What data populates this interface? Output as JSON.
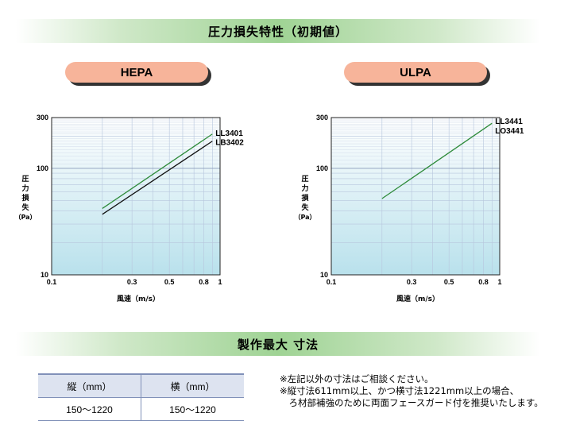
{
  "header_pressure": "圧力損失特性（初期値）",
  "header_size": "製作最大 寸法",
  "charts": [
    {
      "key": "hepa",
      "label": "HEPA",
      "ylabel": [
        "圧",
        "力",
        "損",
        "失",
        "（Pa）"
      ],
      "xlabel": "風速（m/s）"
    },
    {
      "key": "ulpa",
      "label": "ULPA",
      "ylabel": [
        "圧",
        "力",
        "損",
        "失",
        "（Pa）"
      ],
      "xlabel": "風速（m/s）"
    }
  ],
  "chart_data": [
    {
      "type": "line",
      "title": "HEPA",
      "xlabel": "風速（m/s）",
      "ylabel": "圧力損失（Pa）",
      "xscale": "log",
      "yscale": "log",
      "xlim": [
        0.1,
        1
      ],
      "ylim": [
        10,
        300
      ],
      "xticks": [
        "0.1",
        "0.3",
        "0.5",
        "0.8",
        "1"
      ],
      "yticks": [
        "10",
        "100",
        "300"
      ],
      "grid": true,
      "series": [
        {
          "name": "LL3401",
          "color": "#2e8b3a",
          "x": [
            0.2,
            0.9
          ],
          "y": [
            42,
            210
          ]
        },
        {
          "name": "LB3402",
          "color": "#111111",
          "x": [
            0.2,
            0.9
          ],
          "y": [
            37,
            180
          ]
        }
      ]
    },
    {
      "type": "line",
      "title": "ULPA",
      "xlabel": "風速（m/s）",
      "ylabel": "圧力損失（Pa）",
      "xscale": "log",
      "yscale": "log",
      "xlim": [
        0.1,
        1
      ],
      "ylim": [
        10,
        300
      ],
      "xticks": [
        "0.1",
        "0.3",
        "0.5",
        "0.8",
        "1"
      ],
      "yticks": [
        "10",
        "100",
        "300"
      ],
      "grid": true,
      "series": [
        {
          "name": "LL3441",
          "color": "#2e8b3a",
          "x": [
            0.2,
            0.9
          ],
          "y": [
            52,
            265
          ]
        }
      ],
      "annotations": [
        "LL3441",
        "LO3441"
      ]
    }
  ],
  "size_table": {
    "headers": [
      "縦（mm）",
      "横（mm）"
    ],
    "row": [
      "150～1220",
      "150～1220"
    ]
  },
  "notes": [
    "※左記以外の寸法はご相談ください。",
    "※縦寸法611mm以上、かつ横寸法1221mm以上の場合、",
    "　ろ材部補強のために両面フェースガード付を推奨いたします。"
  ]
}
